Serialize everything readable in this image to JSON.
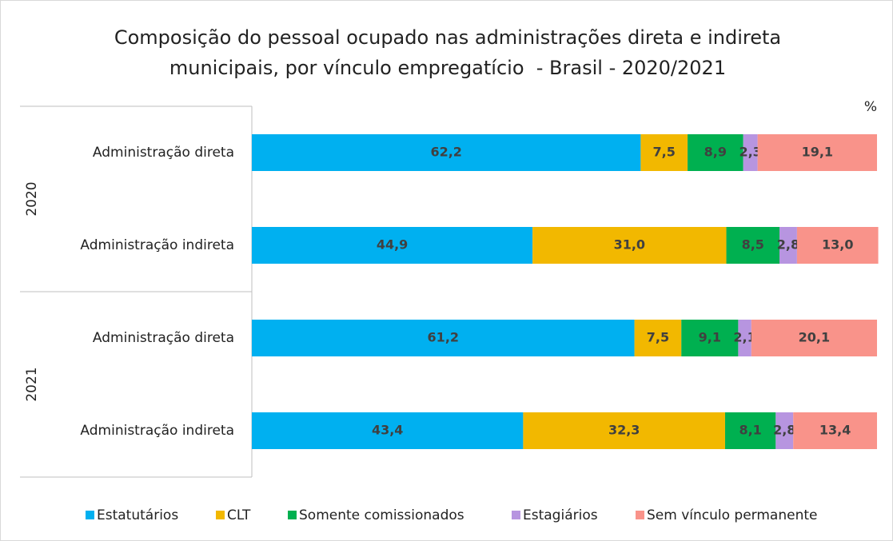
{
  "chart_data": {
    "type": "stacked-bar-horizontal",
    "title": "Composição do pessoal ocupado nas administrações direta e indireta municipais, por vínculo empregatício  - Brasil - 2020/2021",
    "unit": "%",
    "groups": [
      "2020",
      "2021"
    ],
    "categories": [
      "Administração direta",
      "Administração indireta",
      "Administração direta",
      "Administração indireta"
    ],
    "xlim": [
      0,
      100
    ],
    "series": [
      {
        "name": "Estatutários",
        "color": "#00b0f0",
        "values": [
          62.2,
          44.9,
          61.2,
          43.4
        ],
        "value_labels": [
          "62,2",
          "44,9",
          "61,2",
          "43,4"
        ]
      },
      {
        "name": "CLT",
        "color": "#f2b800",
        "values": [
          7.5,
          31.0,
          7.5,
          32.3
        ],
        "value_labels": [
          "7,5",
          "31,0",
          "7,5",
          "32,3"
        ]
      },
      {
        "name": "Somente comissionados",
        "color": "#00b050",
        "values": [
          8.9,
          8.5,
          9.1,
          8.1
        ],
        "value_labels": [
          "8,9",
          "8,5",
          "9,1",
          "8,1"
        ]
      },
      {
        "name": "Estagiários",
        "color": "#b795e0",
        "values": [
          2.3,
          2.8,
          2.1,
          2.8
        ],
        "value_labels": [
          "2,3",
          "2,8",
          "2,1",
          "2,8"
        ]
      },
      {
        "name": "Sem vínculo permanente",
        "color": "#f9938a",
        "values": [
          19.1,
          13.0,
          20.1,
          13.4
        ],
        "value_labels": [
          "19,1",
          "13,0",
          "20,1",
          "13,4"
        ]
      }
    ]
  }
}
